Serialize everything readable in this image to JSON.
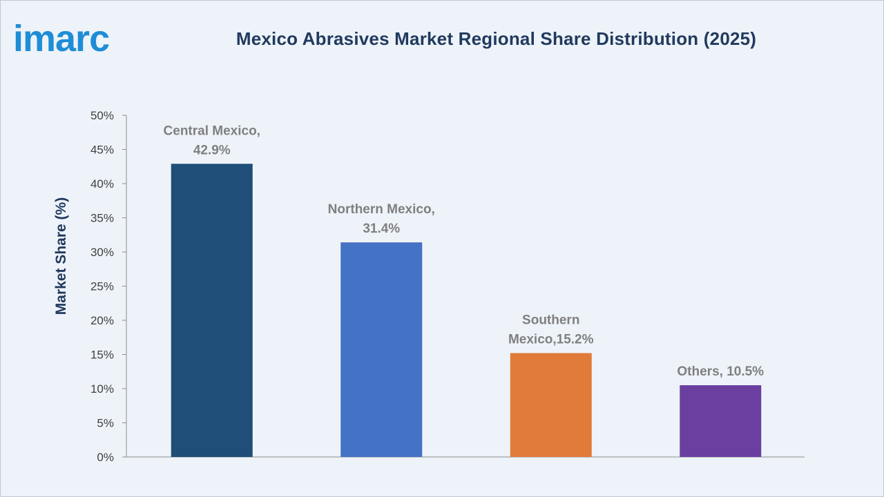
{
  "brand": {
    "logo_text": "imarc",
    "logo_color": "#1f8dd6"
  },
  "chart_data": {
    "type": "bar",
    "title": "Mexico Abrasives Market Regional Share Distribution (2025)",
    "xlabel": "",
    "ylabel": "Market Share (%)",
    "ylim": [
      0,
      50
    ],
    "ytick_step": 5,
    "ytick_labels": [
      "0%",
      "5%",
      "10%",
      "15%",
      "20%",
      "25%",
      "30%",
      "35%",
      "40%",
      "45%",
      "50%"
    ],
    "categories": [
      "Central Mexico",
      "Northern Mexico",
      "Southern Mexico",
      "Others"
    ],
    "values": [
      42.9,
      31.4,
      15.2,
      10.5
    ],
    "data_labels": [
      [
        "Central Mexico,",
        "42.9%"
      ],
      [
        "Northern Mexico,",
        "31.4%"
      ],
      [
        "Southern",
        "Mexico,15.2%"
      ],
      [
        "Others, 10.5%"
      ]
    ],
    "colors": [
      "#1f4e79",
      "#4472c4",
      "#e07b39",
      "#6b3fa0"
    ],
    "grid": false,
    "legend": "none"
  }
}
